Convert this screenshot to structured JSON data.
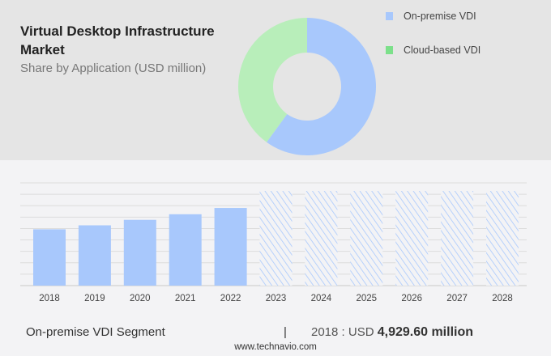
{
  "title": "Virtual Desktop Infrastructure Market",
  "subtitle": "Share by Application (USD million)",
  "colors": {
    "on_premise": "#a8c8fc",
    "cloud": "#b8eeba",
    "cloud_legend": "#7ce08a"
  },
  "chart_data": [
    {
      "type": "pie",
      "donut": true,
      "series": [
        {
          "name": "On-premise VDI",
          "value": 60
        },
        {
          "name": "Cloud-based VDI",
          "value": 40
        }
      ],
      "legend": "top-right"
    },
    {
      "type": "bar",
      "categories": [
        "2018",
        "2019",
        "2020",
        "2021",
        "2022",
        "2023",
        "2024",
        "2025",
        "2026",
        "2027",
        "2028"
      ],
      "series": [
        {
          "name": "On-premise VDI",
          "values": [
            4929.6,
            5280,
            5760,
            6250,
            6800,
            null,
            null,
            null,
            null,
            null,
            null
          ]
        }
      ],
      "forecast_categories": [
        "2023",
        "2024",
        "2025",
        "2026",
        "2027",
        "2028"
      ],
      "grid": true,
      "ylim": [
        0,
        9000
      ]
    }
  ],
  "footer": {
    "segment": "On-premise VDI Segment",
    "separator": "|",
    "year_label": "2018 : USD ",
    "value": "4,929.60 million",
    "site": "www.technavio.com"
  }
}
